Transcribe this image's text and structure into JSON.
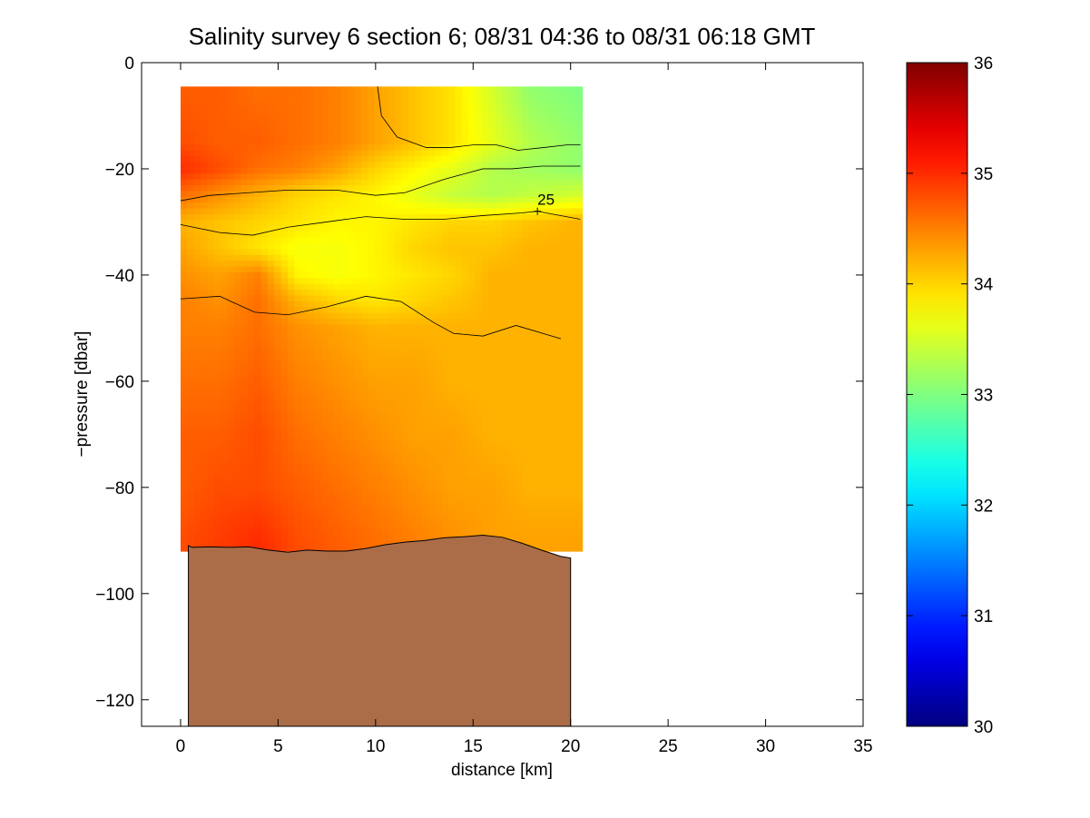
{
  "chart_data": {
    "type": "heatmap",
    "title": "Salinity survey 6 section 6; 08/31 04:36 to 08/31 06:18 GMT",
    "xlabel": "distance [km]",
    "ylabel": "−pressure [dbar]",
    "xlim": [
      -2,
      35
    ],
    "ylim": [
      -125,
      0
    ],
    "x_ticks": [
      0,
      5,
      10,
      15,
      20,
      25,
      30,
      35
    ],
    "x_tick_labels": [
      "0",
      "5",
      "10",
      "15",
      "20",
      "25",
      "30",
      "35"
    ],
    "y_ticks": [
      0,
      -20,
      -40,
      -60,
      -80,
      -100,
      -120
    ],
    "y_tick_labels": [
      "0",
      "−20",
      "−40",
      "−60",
      "−80",
      "−100",
      "−120"
    ],
    "colorbar": {
      "range": [
        30,
        36
      ],
      "ticks": [
        30,
        31,
        32,
        33,
        34,
        35,
        36
      ],
      "tick_labels": [
        "30",
        "31",
        "32",
        "33",
        "34",
        "35",
        "36"
      ],
      "colormap": "jet"
    },
    "data_extent": {
      "x": [
        0,
        20.6
      ],
      "y": [
        -92,
        -4.5
      ]
    },
    "salinity_field": {
      "x": [
        0,
        2,
        4,
        6,
        8,
        10,
        12,
        14,
        16,
        18,
        20.5
      ],
      "y": [
        -5,
        -15,
        -20,
        -25,
        -30,
        -35,
        -40,
        -45,
        -50,
        -60,
        -70,
        -80,
        -90
      ],
      "values": [
        [
          34.7,
          34.7,
          34.6,
          34.6,
          34.5,
          34.3,
          34.1,
          33.9,
          33.5,
          33.1,
          33.0
        ],
        [
          34.8,
          34.7,
          34.7,
          34.6,
          34.5,
          34.3,
          34.1,
          33.9,
          33.6,
          33.3,
          33.1
        ],
        [
          35.0,
          34.8,
          34.6,
          34.5,
          34.3,
          34.0,
          33.8,
          33.6,
          33.3,
          33.2,
          33.1
        ],
        [
          34.6,
          34.4,
          34.2,
          34.0,
          33.9,
          33.8,
          33.6,
          33.4,
          33.3,
          33.4,
          33.5
        ],
        [
          34.2,
          34.1,
          34.0,
          33.9,
          33.8,
          33.8,
          33.9,
          34.0,
          34.0,
          34.1,
          34.2
        ],
        [
          34.3,
          34.1,
          33.9,
          33.7,
          33.7,
          33.8,
          34.0,
          34.1,
          34.1,
          34.2,
          34.2
        ],
        [
          34.4,
          34.3,
          34.5,
          33.8,
          33.7,
          33.8,
          33.9,
          34.0,
          34.2,
          34.2,
          34.2
        ],
        [
          34.5,
          34.4,
          34.6,
          34.2,
          34.0,
          33.9,
          34.0,
          34.1,
          34.2,
          34.2,
          34.2
        ],
        [
          34.5,
          34.5,
          34.6,
          34.4,
          34.3,
          34.2,
          34.2,
          34.2,
          34.2,
          34.2,
          34.2
        ],
        [
          34.6,
          34.6,
          34.7,
          34.5,
          34.4,
          34.3,
          34.3,
          34.2,
          34.2,
          34.2,
          34.2
        ],
        [
          34.7,
          34.7,
          34.8,
          34.6,
          34.5,
          34.4,
          34.3,
          34.3,
          34.2,
          34.2,
          34.2
        ],
        [
          34.7,
          34.8,
          34.8,
          34.7,
          34.6,
          34.5,
          34.4,
          34.3,
          34.3,
          34.2,
          34.2
        ],
        [
          34.8,
          34.9,
          35.0,
          34.8,
          34.7,
          34.6,
          34.5,
          34.4,
          34.3,
          34.3,
          34.3
        ]
      ]
    },
    "contours": [
      {
        "x": [
          10.1,
          10.3,
          11.1,
          12.6,
          13.8,
          15.0,
          16.2,
          17.3,
          18.6,
          19.8,
          20.5
        ],
        "y": [
          -4.5,
          -10,
          -14,
          -16,
          -16,
          -15.5,
          -15.5,
          -16.5,
          -16,
          -15.5,
          -15.5
        ]
      },
      {
        "x": [
          0,
          1.5,
          3.5,
          5.5,
          8.0,
          10.0,
          11.5,
          13.5,
          15.5,
          17.0,
          18.5,
          20.5
        ],
        "y": [
          -26,
          -25,
          -24.5,
          -24,
          -24,
          -25,
          -24.5,
          -22,
          -20,
          -20,
          -19.5,
          -19.5
        ]
      },
      {
        "x": [
          0,
          2.0,
          3.7,
          5.5,
          7.5,
          9.5,
          11.5,
          13.5,
          15.5,
          17.5,
          18.3,
          20.5
        ],
        "y": [
          -30.5,
          -32,
          -32.5,
          -31,
          -30,
          -29,
          -29.5,
          -29.5,
          -28.8,
          -28.3,
          -28,
          -29.5
        ]
      },
      {
        "x": [
          0,
          2.0,
          3.8,
          5.5,
          7.5,
          9.5,
          11.3,
          13.0,
          14.0,
          15.5,
          17.2,
          19.5
        ],
        "y": [
          -44.5,
          -44,
          -47,
          -47.5,
          -46,
          -44,
          -45,
          -49,
          -51,
          -51.5,
          -49.5,
          -52
        ]
      }
    ],
    "contour_label": {
      "text": "25",
      "x": 18.3,
      "y": -28
    },
    "bottom_color": "#ab6d48",
    "bottom_profile": {
      "x": [
        0.4,
        0.6,
        1.5,
        2.5,
        3.5,
        4.5,
        5.5,
        6.5,
        7.5,
        8.5,
        9.5,
        10.5,
        11.5,
        12.5,
        13.5,
        14.5,
        15.5,
        16.5,
        17.5,
        18.5,
        19.5,
        20.0
      ],
      "y": [
        -91,
        -91.3,
        -91.2,
        -91.3,
        -91.2,
        -91.8,
        -92.2,
        -91.8,
        -92.0,
        -92.0,
        -91.5,
        -90.8,
        -90.3,
        -90.0,
        -89.5,
        -89.3,
        -89.0,
        -89.4,
        -90.5,
        -91.8,
        -93.0,
        -93.3
      ]
    }
  }
}
